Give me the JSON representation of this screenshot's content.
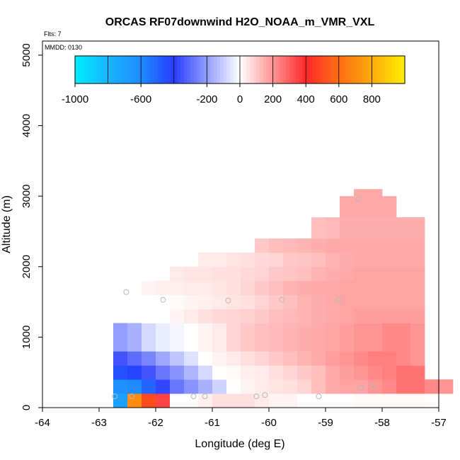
{
  "chart_data": {
    "type": "heatmap",
    "title": "ORCAS RF07downwind H2O_NOAA_m_VMR_VXL",
    "flts_label": "Flts: 7",
    "mmdd_label": "MMDD: 0130",
    "xlabel": "Longitude (deg E)",
    "ylabel": "Altitude (m)",
    "xlim": [
      -64,
      -57
    ],
    "ylim": [
      0,
      5200
    ],
    "x_ticks": [
      "-64",
      "-63",
      "-62",
      "-61",
      "-60",
      "-59",
      "-58",
      "-57"
    ],
    "y_ticks": [
      "0",
      "1000",
      "2000",
      "3000",
      "4000",
      "5000"
    ],
    "colorbar": {
      "range": [
        -1000,
        1000
      ],
      "tick_labels": [
        "-1000",
        "-600",
        "-200",
        "0",
        "200",
        "400",
        "600",
        "800"
      ],
      "tick_values": [
        -1000,
        -600,
        -200,
        0,
        200,
        400,
        600,
        800
      ]
    },
    "cell_size": {
      "lon": 0.25,
      "alt": 100
    },
    "strips": [
      {
        "alt": 0,
        "lon0": -62.75,
        "values": [
          -700,
          700,
          500,
          350,
          0,
          0,
          30,
          60,
          60,
          60,
          40,
          20,
          20,
          0,
          0,
          0,
          0,
          10,
          10,
          10,
          10,
          10
        ]
      },
      {
        "alt": 100,
        "lon0": -62.75,
        "values": [
          -700,
          700,
          500,
          350,
          0,
          0,
          30,
          60,
          60,
          60,
          40,
          20,
          20,
          0,
          0,
          0,
          0,
          10,
          10,
          10,
          10,
          10
        ]
      },
      {
        "alt": 200,
        "lon0": -62.75,
        "values": [
          -620,
          -600,
          -500,
          -380,
          -280,
          -220,
          -160,
          -90,
          0,
          20,
          40,
          50,
          60,
          80,
          120,
          160,
          170,
          170,
          200,
          220,
          260,
          260,
          220,
          200
        ]
      },
      {
        "alt": 300,
        "lon0": -62.75,
        "values": [
          -620,
          -600,
          -500,
          -380,
          -280,
          -220,
          -160,
          -90,
          0,
          20,
          40,
          50,
          60,
          80,
          120,
          160,
          170,
          170,
          200,
          220,
          260,
          260,
          220,
          200
        ]
      },
      {
        "alt": 400,
        "lon0": -62.75,
        "values": [
          -450,
          -420,
          -350,
          -280,
          -220,
          -150,
          -80,
          0,
          10,
          30,
          40,
          60,
          80,
          100,
          120,
          160,
          180,
          200,
          220,
          240,
          260,
          260
        ]
      },
      {
        "alt": 500,
        "lon0": -62.75,
        "values": [
          -450,
          -420,
          -350,
          -280,
          -220,
          -150,
          -80,
          0,
          10,
          30,
          40,
          60,
          80,
          100,
          120,
          160,
          180,
          200,
          220,
          240,
          260,
          260
        ]
      },
      {
        "alt": 600,
        "lon0": -62.75,
        "values": [
          -350,
          -300,
          -250,
          -180,
          -120,
          -60,
          0,
          20,
          40,
          60,
          80,
          100,
          120,
          140,
          160,
          180,
          200,
          220,
          240,
          240,
          220,
          200
        ]
      },
      {
        "alt": 700,
        "lon0": -62.75,
        "values": [
          -350,
          -300,
          -250,
          -180,
          -120,
          -60,
          0,
          20,
          40,
          60,
          80,
          100,
          120,
          140,
          160,
          180,
          200,
          220,
          240,
          240,
          220,
          200
        ]
      },
      {
        "alt": 800,
        "lon0": -62.75,
        "values": [
          -200,
          -160,
          -80,
          -40,
          -20,
          0,
          20,
          40,
          80,
          100,
          120,
          130,
          140,
          150,
          160,
          170,
          180,
          200,
          200,
          220,
          220,
          200
        ]
      },
      {
        "alt": 900,
        "lon0": -62.75,
        "values": [
          -200,
          -160,
          -80,
          -40,
          -20,
          0,
          20,
          40,
          80,
          100,
          120,
          130,
          140,
          150,
          160,
          170,
          180,
          200,
          200,
          220,
          220,
          200
        ]
      },
      {
        "alt": 1000,
        "lon0": -62.75,
        "values": [
          -200,
          -160,
          -80,
          -40,
          -20,
          0,
          20,
          40,
          80,
          100,
          120,
          130,
          140,
          150,
          160,
          170,
          180,
          200,
          200,
          220,
          220,
          200
        ]
      },
      {
        "alt": 1100,
        "lon0": -62.75,
        "values": [
          -200,
          -160,
          -80,
          -40,
          -20,
          0,
          20,
          40,
          80,
          100,
          120,
          130,
          140,
          150,
          160,
          170,
          180,
          200,
          200,
          220,
          220,
          200
        ]
      },
      {
        "alt": 1200,
        "lon0": -62.25,
        "values": [
          0,
          0,
          20,
          40,
          60,
          70,
          80,
          90,
          100,
          120,
          130,
          140,
          150,
          160,
          170,
          180,
          180,
          180,
          180,
          180
        ]
      },
      {
        "alt": 1300,
        "lon0": -62.25,
        "values": [
          0,
          0,
          20,
          40,
          60,
          70,
          80,
          90,
          100,
          120,
          130,
          140,
          150,
          160,
          170,
          180,
          180,
          180,
          180,
          180
        ]
      },
      {
        "alt": 1400,
        "lon0": -62.25,
        "values": [
          0,
          0,
          10,
          20,
          30,
          40,
          50,
          60,
          80,
          100,
          120,
          140,
          150,
          160,
          170,
          170,
          170,
          170,
          170,
          170
        ]
      },
      {
        "alt": 1500,
        "lon0": -62.25,
        "values": [
          0,
          0,
          10,
          20,
          30,
          40,
          50,
          60,
          80,
          100,
          120,
          140,
          150,
          160,
          170,
          170,
          170,
          170,
          170,
          170
        ]
      },
      {
        "alt": 1600,
        "lon0": -62.25,
        "values": [
          20,
          30,
          30,
          40,
          40,
          50,
          60,
          80,
          100,
          120,
          140,
          150,
          160,
          160,
          170,
          170,
          170,
          170,
          170,
          170
        ]
      },
      {
        "alt": 1700,
        "lon0": -62.25,
        "values": [
          20,
          30,
          30,
          40,
          40,
          50,
          60,
          80,
          100,
          120,
          140,
          150,
          160,
          160,
          170,
          170,
          170,
          170,
          170,
          170
        ]
      },
      {
        "alt": 1800,
        "lon0": -61.75,
        "values": [
          40,
          50,
          50,
          60,
          60,
          70,
          80,
          100,
          110,
          120,
          140,
          150,
          160,
          170,
          170,
          170,
          170,
          170
        ]
      },
      {
        "alt": 1900,
        "lon0": -61.75,
        "values": [
          40,
          50,
          50,
          60,
          60,
          70,
          80,
          100,
          110,
          120,
          140,
          150,
          160,
          170,
          170,
          170,
          170,
          170
        ]
      },
      {
        "alt": 2000,
        "lon0": -61.25,
        "values": [
          40,
          40,
          50,
          60,
          70,
          80,
          100,
          110,
          120,
          140,
          150,
          160,
          160,
          160,
          160,
          160
        ]
      },
      {
        "alt": 2100,
        "lon0": -61.25,
        "values": [
          40,
          40,
          50,
          60,
          70,
          80,
          100,
          110,
          120,
          140,
          150,
          160,
          160,
          160,
          160,
          160
        ]
      },
      {
        "alt": 2200,
        "lon0": -60.25,
        "values": [
          100,
          120,
          130,
          140,
          150,
          160,
          160,
          160,
          160,
          160,
          160,
          160
        ]
      },
      {
        "alt": 2300,
        "lon0": -60.25,
        "values": [
          100,
          120,
          130,
          140,
          150,
          160,
          160,
          160,
          160,
          160,
          160,
          160
        ]
      },
      {
        "alt": 2400,
        "lon0": -59.25,
        "values": [
          120,
          130,
          150,
          150,
          150,
          150,
          150,
          150
        ]
      },
      {
        "alt": 2500,
        "lon0": -59.25,
        "values": [
          120,
          130,
          150,
          150,
          150,
          150,
          150,
          150
        ]
      },
      {
        "alt": 2600,
        "lon0": -59.25,
        "values": [
          120,
          130,
          150,
          150,
          150,
          150,
          150,
          150
        ]
      },
      {
        "alt": 2700,
        "lon0": -58.75,
        "values": [
          160,
          160,
          160,
          160
        ]
      },
      {
        "alt": 2800,
        "lon0": -58.75,
        "values": [
          160,
          160,
          160,
          160
        ]
      },
      {
        "alt": 2900,
        "lon0": -58.75,
        "values": [
          160,
          160,
          160,
          160
        ]
      },
      {
        "alt": 3000,
        "lon0": -58.5,
        "values": [
          160,
          160
        ]
      }
    ],
    "markers": [
      {
        "lon": -62.72,
        "alt": 160
      },
      {
        "lon": -62.42,
        "alt": 160
      },
      {
        "lon": -61.33,
        "alt": 160
      },
      {
        "lon": -61.13,
        "alt": 160
      },
      {
        "lon": -60.22,
        "alt": 160
      },
      {
        "lon": -60.07,
        "alt": 180
      },
      {
        "lon": -59.12,
        "alt": 160
      },
      {
        "lon": -58.38,
        "alt": 280
      },
      {
        "lon": -58.17,
        "alt": 300
      },
      {
        "lon": -62.52,
        "alt": 1640
      },
      {
        "lon": -61.87,
        "alt": 1530
      },
      {
        "lon": -60.72,
        "alt": 1520
      },
      {
        "lon": -59.77,
        "alt": 1530
      },
      {
        "lon": -58.77,
        "alt": 1530
      },
      {
        "lon": -58.42,
        "alt": 2960
      }
    ]
  }
}
